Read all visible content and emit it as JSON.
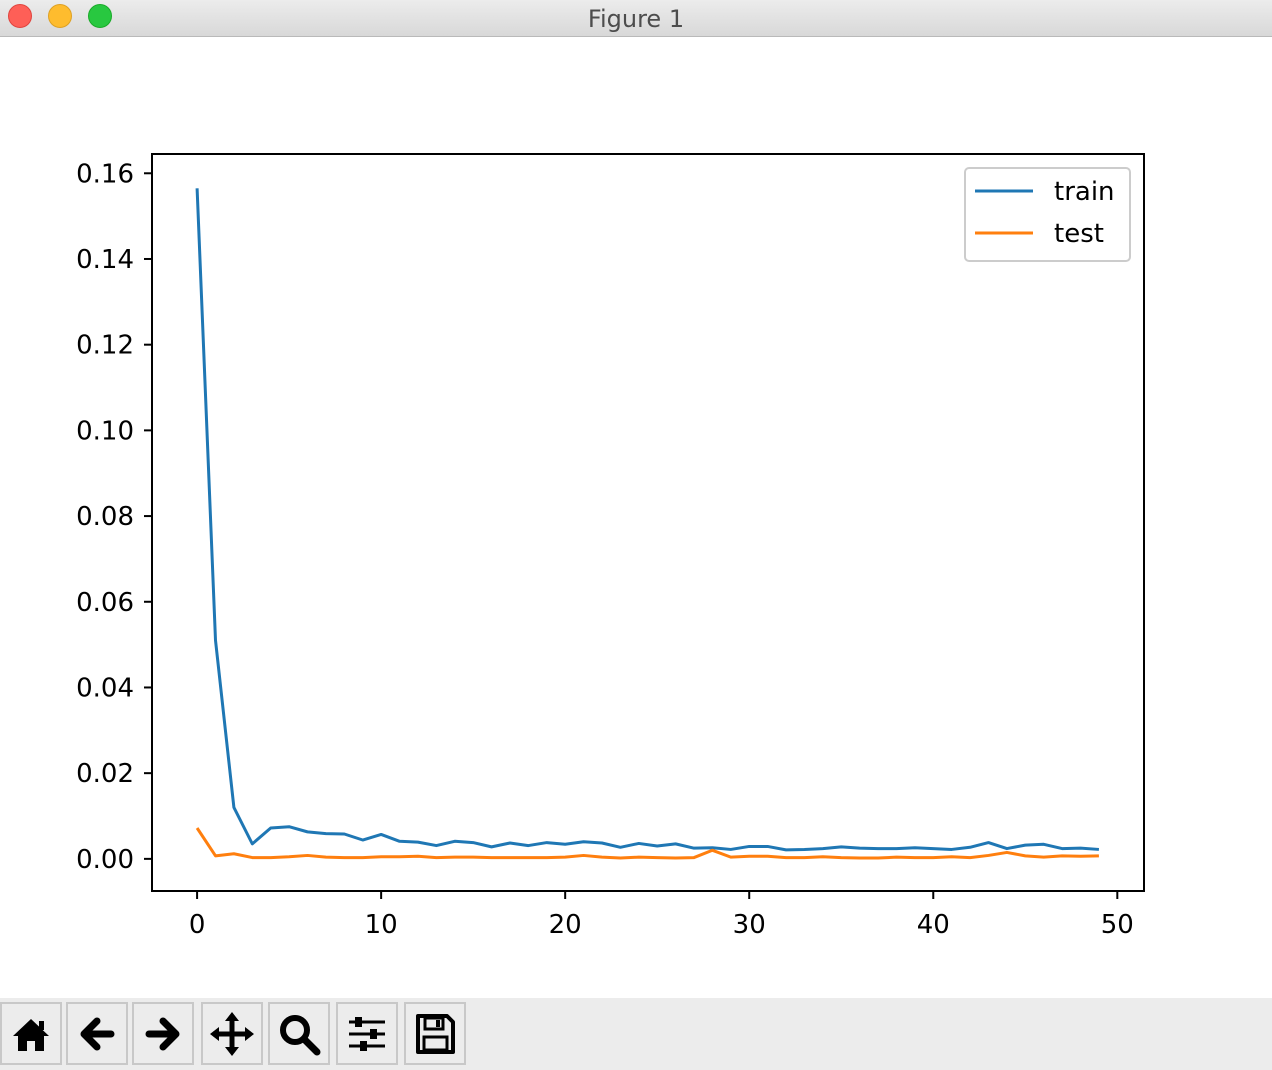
{
  "window": {
    "title": "Figure 1"
  },
  "toolbar": {
    "buttons": [
      {
        "name": "home-button",
        "icon": "home-icon"
      },
      {
        "name": "back-button",
        "icon": "arrow-left-icon"
      },
      {
        "name": "forward-button",
        "icon": "arrow-right-icon"
      },
      {
        "name": "pan-button",
        "icon": "move-icon"
      },
      {
        "name": "zoom-button",
        "icon": "magnifier-icon"
      },
      {
        "name": "configure-subplots-button",
        "icon": "sliders-icon"
      },
      {
        "name": "save-button",
        "icon": "floppy-disk-icon"
      }
    ]
  },
  "chart_data": {
    "type": "line",
    "title": "",
    "xlabel": "",
    "ylabel": "",
    "xlim": [
      -2.45,
      51.45
    ],
    "ylim": [
      -0.0075,
      0.1645
    ],
    "xticks": [
      0,
      10,
      20,
      30,
      40,
      50
    ],
    "yticks": [
      0.0,
      0.02,
      0.04,
      0.06,
      0.08,
      0.1,
      0.12,
      0.14,
      0.16
    ],
    "ytick_labels": [
      "0.00",
      "0.02",
      "0.04",
      "0.06",
      "0.08",
      "0.10",
      "0.12",
      "0.14",
      "0.16"
    ],
    "grid": false,
    "legend": {
      "position": "top-right"
    },
    "series": [
      {
        "name": "train",
        "color": "#1f77b4",
        "x": [
          0,
          1,
          2,
          3,
          4,
          5,
          6,
          7,
          8,
          9,
          10,
          11,
          12,
          13,
          14,
          15,
          16,
          17,
          18,
          19,
          20,
          21,
          22,
          23,
          24,
          25,
          26,
          27,
          28,
          29,
          30,
          31,
          32,
          33,
          34,
          35,
          36,
          37,
          38,
          39,
          40,
          41,
          42,
          43,
          44,
          45,
          46,
          47,
          48,
          49
        ],
        "values": [
          0.1565,
          0.051,
          0.012,
          0.0035,
          0.0072,
          0.0075,
          0.0063,
          0.0059,
          0.0058,
          0.0044,
          0.0057,
          0.0041,
          0.0039,
          0.0031,
          0.0041,
          0.0038,
          0.0028,
          0.0037,
          0.0031,
          0.0038,
          0.0034,
          0.004,
          0.0037,
          0.0027,
          0.0036,
          0.003,
          0.0035,
          0.0025,
          0.0026,
          0.0022,
          0.0029,
          0.0029,
          0.0021,
          0.0022,
          0.0024,
          0.0028,
          0.0025,
          0.0024,
          0.0024,
          0.0026,
          0.0024,
          0.0022,
          0.0027,
          0.0038,
          0.0024,
          0.0032,
          0.0034,
          0.0024,
          0.0025,
          0.0022
        ]
      },
      {
        "name": "test",
        "color": "#ff7f0e",
        "x": [
          0,
          1,
          2,
          3,
          4,
          5,
          6,
          7,
          8,
          9,
          10,
          11,
          12,
          13,
          14,
          15,
          16,
          17,
          18,
          19,
          20,
          21,
          22,
          23,
          24,
          25,
          26,
          27,
          28,
          29,
          30,
          31,
          32,
          33,
          34,
          35,
          36,
          37,
          38,
          39,
          40,
          41,
          42,
          43,
          44,
          45,
          46,
          47,
          48,
          49
        ],
        "values": [
          0.0072,
          0.0007,
          0.0012,
          0.0003,
          0.0003,
          0.0005,
          0.0008,
          0.0004,
          0.0003,
          0.0003,
          0.0005,
          0.0005,
          0.0006,
          0.0003,
          0.0004,
          0.0004,
          0.0003,
          0.0003,
          0.0003,
          0.0003,
          0.0004,
          0.0008,
          0.0004,
          0.0002,
          0.0004,
          0.0003,
          0.0002,
          0.0003,
          0.002,
          0.0004,
          0.0006,
          0.0006,
          0.0003,
          0.0003,
          0.0005,
          0.0003,
          0.0002,
          0.0002,
          0.0004,
          0.0003,
          0.0003,
          0.0005,
          0.0003,
          0.0008,
          0.0015,
          0.0007,
          0.0004,
          0.0007,
          0.0006,
          0.0007
        ]
      }
    ]
  }
}
